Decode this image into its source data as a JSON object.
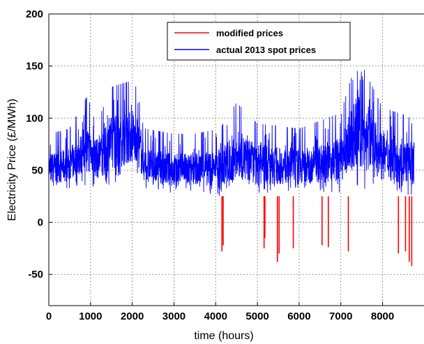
{
  "chart_data": {
    "type": "line",
    "xlabel": "time (hours)",
    "ylabel": "Electricity Price (£/MWh)",
    "xlim": [
      0,
      8760
    ],
    "ylim": [
      -80,
      200
    ],
    "xticks": [
      0,
      1000,
      2000,
      3000,
      4000,
      5000,
      6000,
      7000,
      8000
    ],
    "yticks": [
      200,
      150,
      100,
      50,
      0,
      -50
    ],
    "grid": true,
    "legend_position": "top-center",
    "series": [
      {
        "name": "modified prices",
        "color": "#ff0000",
        "spikes": [
          {
            "x": 4150,
            "y": -28
          },
          {
            "x": 4180,
            "y": -22
          },
          {
            "x": 5160,
            "y": -25
          },
          {
            "x": 5180,
            "y": -15
          },
          {
            "x": 5480,
            "y": -38
          },
          {
            "x": 5520,
            "y": -30
          },
          {
            "x": 5860,
            "y": -25
          },
          {
            "x": 6550,
            "y": -22
          },
          {
            "x": 6700,
            "y": -24
          },
          {
            "x": 7180,
            "y": -28
          },
          {
            "x": 8380,
            "y": -30
          },
          {
            "x": 8550,
            "y": -28
          },
          {
            "x": 8640,
            "y": -38
          },
          {
            "x": 8700,
            "y": -42
          }
        ]
      },
      {
        "name": "actual 2013 spot prices",
        "color": "#0000ff",
        "profile": [
          {
            "x": 0,
            "low": 30,
            "high": 85
          },
          {
            "x": 500,
            "low": 32,
            "high": 90
          },
          {
            "x": 900,
            "low": 35,
            "high": 120
          },
          {
            "x": 1200,
            "low": 32,
            "high": 100
          },
          {
            "x": 1500,
            "low": 35,
            "high": 130
          },
          {
            "x": 1900,
            "low": 40,
            "high": 135
          },
          {
            "x": 2100,
            "low": 45,
            "high": 130
          },
          {
            "x": 2300,
            "low": 30,
            "high": 90
          },
          {
            "x": 3000,
            "low": 28,
            "high": 85
          },
          {
            "x": 3500,
            "low": 30,
            "high": 85
          },
          {
            "x": 4100,
            "low": 25,
            "high": 90
          },
          {
            "x": 4500,
            "low": 28,
            "high": 115
          },
          {
            "x": 5000,
            "low": 28,
            "high": 95
          },
          {
            "x": 6000,
            "low": 28,
            "high": 90
          },
          {
            "x": 7000,
            "low": 28,
            "high": 105
          },
          {
            "x": 7400,
            "low": 30,
            "high": 160
          },
          {
            "x": 8000,
            "low": 28,
            "high": 110
          },
          {
            "x": 8760,
            "low": 25,
            "high": 100
          }
        ]
      }
    ]
  }
}
